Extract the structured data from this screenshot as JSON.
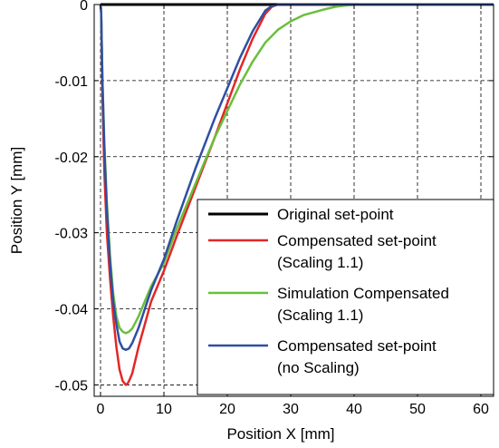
{
  "chart_data": {
    "type": "line",
    "xlabel": "Position X [mm]",
    "ylabel": "Position Y [mm]",
    "xlim": [
      -1,
      62
    ],
    "ylim": [
      -0.0515,
      0.0
    ],
    "xticks": [
      0,
      10,
      20,
      30,
      40,
      50,
      60
    ],
    "xtick_labels": [
      "0",
      "10",
      "20",
      "30",
      "40",
      "50",
      "60"
    ],
    "yticks": [
      0,
      -0.01,
      -0.02,
      -0.03,
      -0.04,
      -0.05
    ],
    "ytick_labels": [
      "0",
      "-0.01",
      "-0.02",
      "-0.03",
      "-0.04",
      "-0.05"
    ],
    "grid": true,
    "legend_position": "bottom-right",
    "series": [
      {
        "name_lines": [
          "Original set-point"
        ],
        "color": "#000000",
        "x": [
          0,
          62
        ],
        "y": [
          0,
          0
        ]
      },
      {
        "name_lines": [
          "Compensated set-point",
          "(Scaling 1.1)"
        ],
        "color": "#e32626",
        "x": [
          0,
          0.1,
          0.3,
          0.6,
          1,
          1.5,
          2,
          2.5,
          3,
          3.5,
          4,
          4.3,
          4.6,
          5,
          6,
          7,
          8,
          10,
          12,
          15,
          18,
          20,
          22,
          24,
          26,
          27,
          28,
          30,
          62
        ],
        "y": [
          0,
          -0.001,
          -0.012,
          -0.022,
          -0.03,
          -0.036,
          -0.041,
          -0.045,
          -0.048,
          -0.0495,
          -0.05,
          -0.0498,
          -0.0493,
          -0.0485,
          -0.045,
          -0.042,
          -0.039,
          -0.035,
          -0.0305,
          -0.024,
          -0.0175,
          -0.013,
          -0.0085,
          -0.0045,
          -0.0012,
          -0.0003,
          0,
          0,
          0
        ]
      },
      {
        "name_lines": [
          "Simulation Compensated",
          "(Scaling 1.1)"
        ],
        "color": "#6abf3c",
        "x": [
          0,
          0.1,
          0.3,
          0.6,
          1,
          1.5,
          2,
          2.5,
          3,
          3.5,
          4,
          4.5,
          5,
          6,
          7,
          8,
          10,
          12,
          15,
          18,
          20,
          22,
          24,
          26,
          28,
          30,
          32,
          35,
          37,
          39,
          41,
          43,
          62
        ],
        "y": [
          0,
          -0.001,
          -0.01,
          -0.018,
          -0.026,
          -0.033,
          -0.038,
          -0.041,
          -0.0425,
          -0.043,
          -0.0432,
          -0.043,
          -0.0426,
          -0.041,
          -0.039,
          -0.037,
          -0.034,
          -0.0295,
          -0.0235,
          -0.0175,
          -0.014,
          -0.0105,
          -0.0075,
          -0.005,
          -0.0033,
          -0.0022,
          -0.0014,
          -0.0007,
          -0.0003,
          -0.0001,
          0,
          0,
          0
        ]
      },
      {
        "name_lines": [
          "Compensated set-point",
          "(no Scaling)"
        ],
        "color": "#2e4fa3",
        "x": [
          0,
          0.1,
          0.3,
          0.6,
          1,
          1.5,
          2,
          2.5,
          3,
          3.5,
          4,
          4.5,
          5,
          6,
          7,
          8,
          10,
          12,
          15,
          18,
          20,
          22,
          24,
          26,
          27,
          28,
          29,
          62
        ],
        "y": [
          0,
          -0.001,
          -0.01,
          -0.019,
          -0.027,
          -0.034,
          -0.039,
          -0.042,
          -0.0443,
          -0.0452,
          -0.0454,
          -0.0452,
          -0.0445,
          -0.0425,
          -0.04,
          -0.0375,
          -0.0335,
          -0.0285,
          -0.0215,
          -0.015,
          -0.011,
          -0.007,
          -0.0035,
          -0.0008,
          -0.0002,
          0,
          0,
          0
        ]
      }
    ]
  }
}
